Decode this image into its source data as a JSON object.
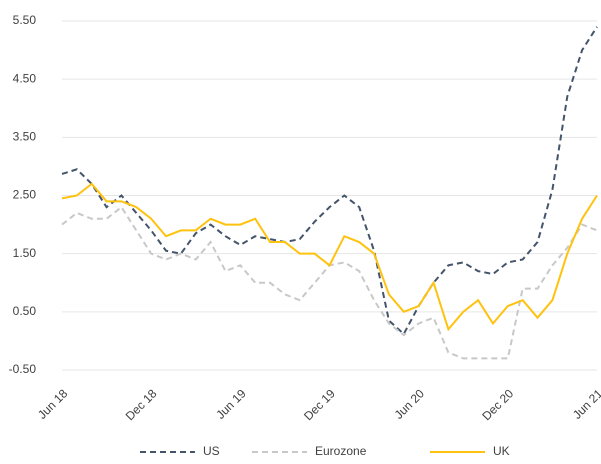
{
  "chart_data": {
    "type": "line",
    "categories": [
      "Jun 18",
      null,
      null,
      null,
      null,
      null,
      "Dec 18",
      null,
      null,
      null,
      null,
      null,
      "Jun 19",
      null,
      null,
      null,
      null,
      null,
      "Dec 19",
      null,
      null,
      null,
      null,
      null,
      "Jun 20",
      null,
      null,
      null,
      null,
      null,
      "Dec 20",
      null,
      null,
      null,
      null,
      null,
      "Jun 21"
    ],
    "series": [
      {
        "name": "US",
        "color": "#44546a",
        "dash": "dashed",
        "values": [
          2.87,
          2.95,
          2.7,
          2.3,
          2.5,
          2.2,
          1.9,
          1.55,
          1.5,
          1.85,
          2.0,
          1.8,
          1.65,
          1.8,
          1.75,
          1.7,
          1.75,
          2.05,
          2.3,
          2.5,
          2.3,
          1.55,
          0.35,
          0.12,
          0.6,
          1.0,
          1.3,
          1.35,
          1.2,
          1.15,
          1.35,
          1.4,
          1.7,
          2.6,
          4.2,
          5.0,
          5.4
        ]
      },
      {
        "name": "Eurozone",
        "color": "#c8c8c8",
        "dash": "dashed",
        "values": [
          2.0,
          2.2,
          2.1,
          2.1,
          2.3,
          1.9,
          1.5,
          1.4,
          1.5,
          1.4,
          1.7,
          1.2,
          1.3,
          1.0,
          1.0,
          0.8,
          0.7,
          1.0,
          1.3,
          1.35,
          1.2,
          0.7,
          0.3,
          0.1,
          0.3,
          0.4,
          -0.2,
          -0.3,
          -0.3,
          -0.3,
          -0.3,
          0.9,
          0.9,
          1.3,
          1.6,
          2.0,
          1.9
        ]
      },
      {
        "name": "UK",
        "color": "#ffc20e",
        "dash": "solid",
        "values": [
          2.45,
          2.5,
          2.7,
          2.4,
          2.4,
          2.3,
          2.1,
          1.8,
          1.9,
          1.9,
          2.1,
          2.0,
          2.0,
          2.1,
          1.7,
          1.7,
          1.5,
          1.5,
          1.3,
          1.8,
          1.7,
          1.5,
          0.8,
          0.5,
          0.6,
          1.0,
          0.2,
          0.5,
          0.7,
          0.3,
          0.6,
          0.7,
          0.4,
          0.7,
          1.5,
          2.1,
          2.5
        ]
      }
    ],
    "ylim": [
      -0.5,
      5.5
    ],
    "yticks": [
      {
        "value": -0.5,
        "label": "-0.50"
      },
      {
        "value": 0.5,
        "label": "0.50"
      },
      {
        "value": 1.5,
        "label": "1.50"
      },
      {
        "value": 2.5,
        "label": "2.50"
      },
      {
        "value": 3.5,
        "label": "3.50"
      },
      {
        "value": 4.5,
        "label": "4.50"
      },
      {
        "value": 5.5,
        "label": "5.50"
      }
    ],
    "grid": true,
    "legend": "bottom"
  }
}
